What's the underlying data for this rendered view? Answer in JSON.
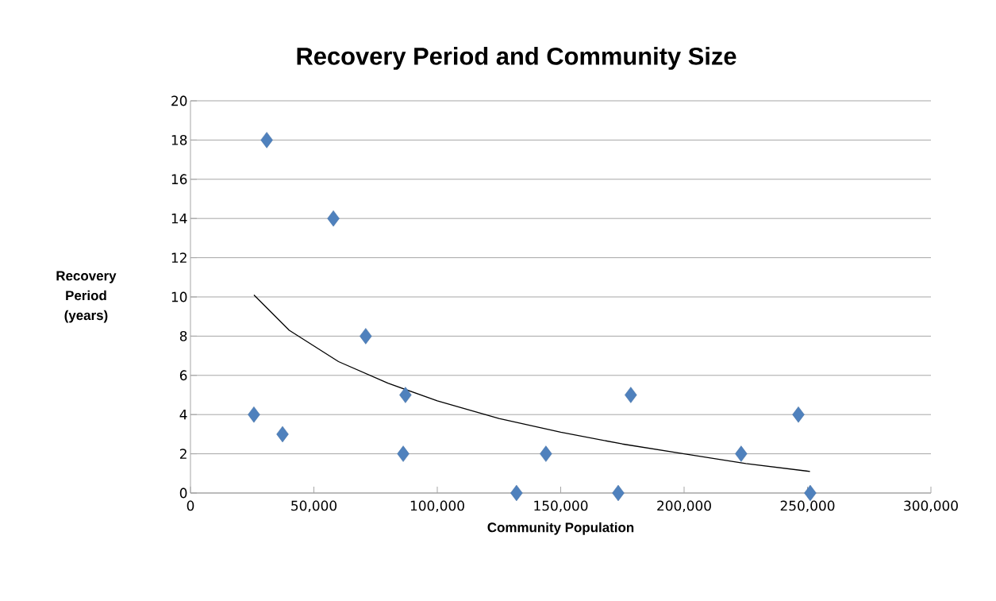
{
  "chart_data": {
    "type": "scatter",
    "title": "Recovery Period and Community Size",
    "xlabel": "Community Population",
    "ylabel": "Recovery Period (years)",
    "xlim": [
      0,
      300000
    ],
    "ylim": [
      0,
      20
    ],
    "xticks": [
      0,
      {
        "value": 50000,
        "label": "50,000"
      },
      {
        "value": 100000,
        "label": "100,000"
      },
      {
        "value": 150000,
        "label": "150,000"
      },
      {
        "value": 200000,
        "label": "200,000"
      },
      {
        "value": 250000,
        "label": "250,000"
      },
      {
        "value": 300000,
        "label": "300,000"
      }
    ],
    "yticks": [
      0,
      2,
      4,
      6,
      8,
      10,
      12,
      14,
      16,
      18,
      20
    ],
    "grid": "y",
    "marker": "diamond",
    "series": [
      {
        "color": "#4f81bd",
        "x": [
          25700,
          30900,
          37300,
          57900,
          71000,
          87100,
          86200,
          132100,
          144000,
          173300,
          178400,
          223100,
          246300,
          251100
        ],
        "values": [
          4,
          18,
          3,
          14,
          8,
          5,
          2,
          0,
          2,
          0,
          5,
          2,
          4,
          0
        ]
      },
      {
        "type": "line",
        "color": "#000000",
        "marker": "none",
        "line_style": "solid",
        "x": [
          25700,
          40000,
          60000,
          80000,
          100000,
          125000,
          150000,
          175000,
          200000,
          225000,
          251000
        ],
        "values": [
          10.1,
          8.3,
          6.7,
          5.6,
          4.7,
          3.8,
          3.1,
          2.5,
          2.0,
          1.5,
          1.1
        ]
      }
    ]
  }
}
